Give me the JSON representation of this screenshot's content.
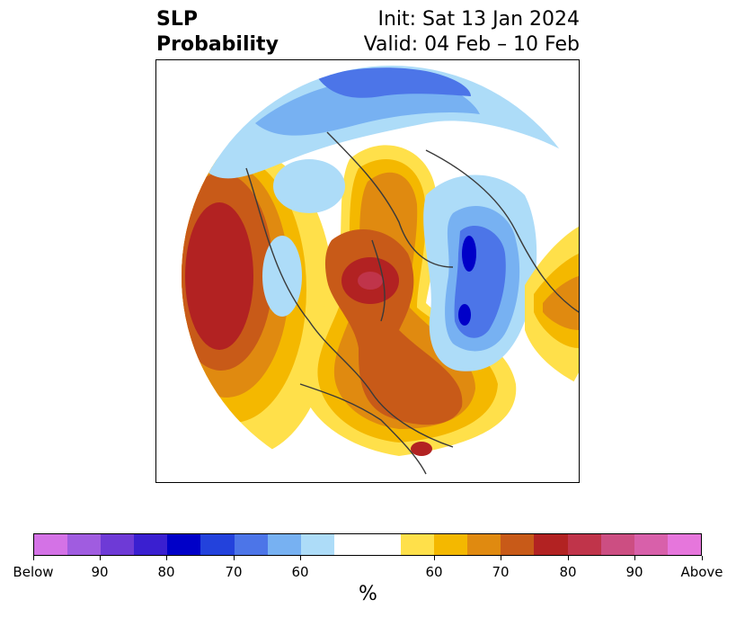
{
  "title": {
    "line1_left": "SLP",
    "line2_left": "Probability",
    "line1_right": "Init: Sat 13 Jan 2024",
    "line2_right": "Valid: 04 Feb – 10 Feb"
  },
  "colorbar": {
    "colors": [
      "#d472e6",
      "#a05ce0",
      "#6e3ad6",
      "#3a1fd0",
      "#0000c8",
      "#2342dc",
      "#4c75e8",
      "#77b1f2",
      "#addcf8",
      "#ffffff",
      "#ffe04a",
      "#f4b800",
      "#e08a10",
      "#c85a18",
      "#b22222",
      "#c0344a",
      "#cc4e82",
      "#d860aa",
      "#e676dc"
    ],
    "tick_labels": [
      "Below",
      "90",
      "80",
      "70",
      "60",
      "60",
      "70",
      "80",
      "90",
      "Above"
    ],
    "unit_label": "%"
  },
  "map": {
    "projection": "north-polar stereographic",
    "colors": {
      "below_60": "#addcf8",
      "below_70": "#77b1f2",
      "below_80": "#4c75e8",
      "below_90": "#2342dc",
      "below_95": "#0000c8",
      "above_60": "#ffe04a",
      "above_65": "#f4b800",
      "above_70": "#e08a10",
      "above_75": "#c85a18",
      "above_80": "#b22222",
      "above_85": "#c0344a",
      "coast": "#3a3a3a"
    }
  }
}
